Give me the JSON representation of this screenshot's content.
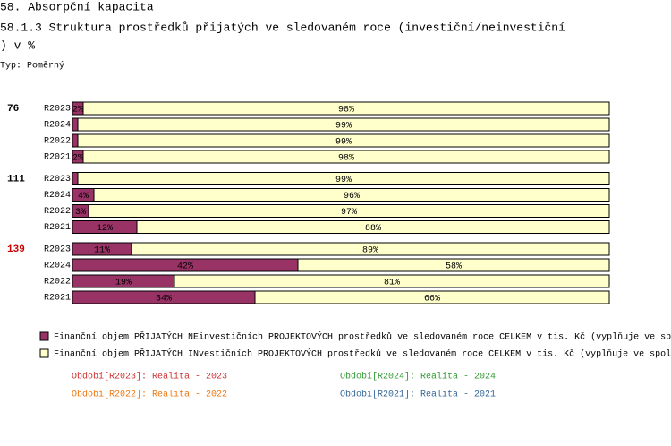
{
  "chart_data": {
    "type": "bar",
    "stacked": true,
    "orientation": "horizontal",
    "title": "58. Absorpční kapacita",
    "subtitle_lines": [
      "58.1.3 Struktura prostředků přijatých ve sledovaném roce (investiční/neinvestiční",
      ") v %"
    ],
    "note": "Typ: Poměrný",
    "xlim": [
      0,
      100
    ],
    "groups": [
      {
        "label": "76",
        "color": "#000000",
        "categories": [
          "R2023",
          "R2024",
          "R2022",
          "R2021"
        ]
      },
      {
        "label": "111",
        "color": "#000000",
        "categories": [
          "R2023",
          "R2024",
          "R2022",
          "R2021"
        ]
      },
      {
        "label": "139",
        "color": "#cc0000",
        "categories": [
          "R2023",
          "R2024",
          "R2022",
          "R2021"
        ]
      }
    ],
    "series": [
      {
        "name": "Finanční objem PŘIJATÝCH NEinvestičních PROJEKTOVÝCH prostředků ve sledovaném roce CELKEM v tis. Kč (vyplňuje ve sp",
        "color": "#993366",
        "values": [
          [
            2,
            1,
            1,
            2
          ],
          [
            1,
            4,
            3,
            12
          ],
          [
            11,
            42,
            19,
            34
          ]
        ],
        "value_labels": [
          [
            "2%",
            null,
            null,
            "2%"
          ],
          [
            null,
            "4%",
            "3%",
            "12%"
          ],
          [
            "11%",
            "42%",
            "19%",
            "34%"
          ]
        ]
      },
      {
        "name": "Finanční objem PŘIJATÝCH INvestičních PROJEKTOVÝCH prostředků ve sledovaném roce CELKEM v tis. Kč (vyplňuje ve spol",
        "color": "#ffffcc",
        "values": [
          [
            98,
            99,
            99,
            98
          ],
          [
            99,
            96,
            97,
            88
          ],
          [
            89,
            58,
            81,
            66
          ]
        ],
        "value_labels": [
          [
            "98%",
            "99%",
            "99%",
            "98%"
          ],
          [
            "99%",
            "96%",
            "97%",
            "88%"
          ],
          [
            "89%",
            "58%",
            "81%",
            "66%"
          ]
        ]
      }
    ],
    "periods": [
      {
        "text": "Období[R2023]: Realita - 2023",
        "color": "#cc3333"
      },
      {
        "text": "Období[R2024]: Realita - 2024",
        "color": "#339933"
      },
      {
        "text": "Období[R2022]: Realita - 2022",
        "color": "#ee7711"
      },
      {
        "text": "Období[R2021]: Realita - 2021",
        "color": "#336699"
      }
    ]
  }
}
